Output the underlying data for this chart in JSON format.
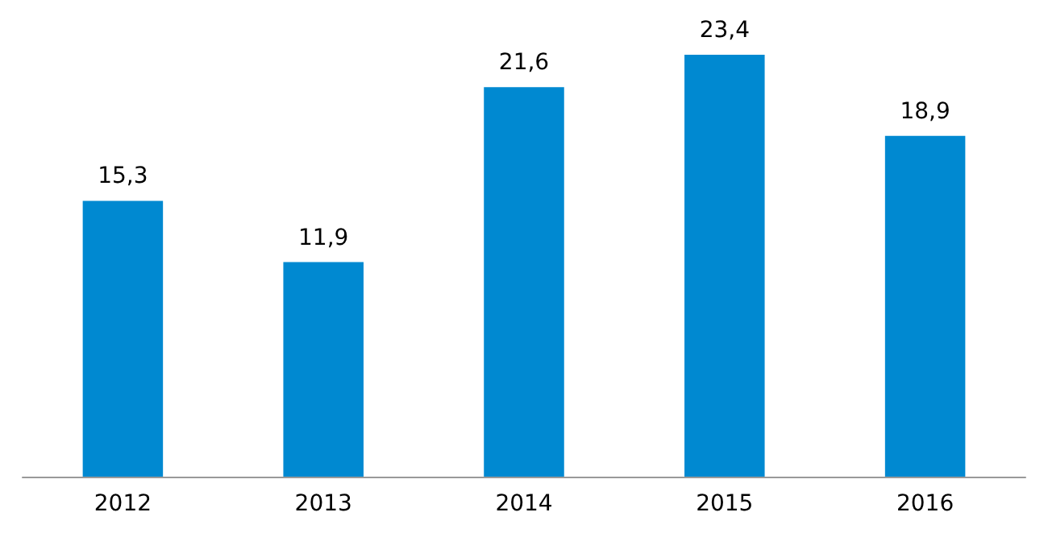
{
  "chart_data": {
    "type": "bar",
    "categories": [
      "2012",
      "2013",
      "2014",
      "2015",
      "2016"
    ],
    "values": [
      15.3,
      11.9,
      21.6,
      23.4,
      18.9
    ],
    "value_labels": [
      "15,3",
      "11,9",
      "21,6",
      "23,4",
      "18,9"
    ],
    "color": "#0089d1"
  }
}
